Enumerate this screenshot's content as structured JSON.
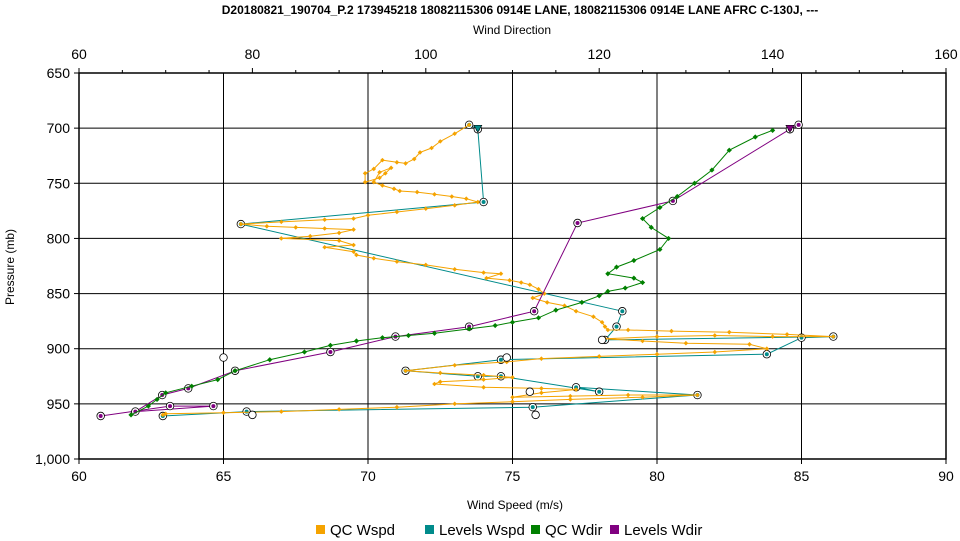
{
  "chart_data": {
    "type": "line",
    "title": "D20180821_190704_P.2 173945218 18082115306 0914E LANE, 18082115306 0914E LANE AFRC C-130J, ---",
    "xlabel": "Wind Speed (m/s)",
    "ylabel": "Pressure (mb)",
    "x2label": "Wind Direction",
    "xlim": [
      60,
      90
    ],
    "x2lim": [
      60,
      160
    ],
    "ylim": [
      650,
      1000
    ],
    "y_inverted": true,
    "grid": true,
    "legend_position": "bottom",
    "xticks": [
      "60",
      "65",
      "70",
      "75",
      "80",
      "85",
      "90"
    ],
    "x2ticks": [
      "60",
      "80",
      "100",
      "120",
      "140",
      "160"
    ],
    "yticks": [
      "650",
      "700",
      "750",
      "800",
      "850",
      "900",
      "950",
      "1,000"
    ],
    "colors": {
      "qc_wspd": "#F5A300",
      "levels_wspd": "#008B8B",
      "qc_wdir": "#008000",
      "levels_wdir": "#800080"
    },
    "series": [
      {
        "name": "QC Wspd",
        "axis": "bottom",
        "x": [
          73.5,
          73.0,
          72.5,
          72.2,
          71.8,
          71.6,
          71.3,
          71.0,
          70.5,
          70.2,
          69.9,
          69.9,
          70.4,
          70.6,
          70.8,
          70.4,
          70.2,
          70.5,
          70.9,
          71.1,
          71.7,
          72.3,
          72.9,
          73.4,
          73.8,
          73.0,
          72.0,
          71.0,
          70.0,
          69.5,
          68.5,
          67.0,
          65.6,
          66.5,
          67.5,
          68.5,
          69.5,
          69.0,
          68.0,
          67.0,
          69.0,
          69.5,
          68.5,
          69.5,
          69.6,
          70.2,
          71.0,
          72.0,
          73.0,
          74.0,
          74.6,
          74.1,
          74.9,
          75.3,
          75.6,
          75.9,
          76.1,
          75.7,
          76.2,
          76.8,
          77.2,
          77.8,
          78.1,
          78.2,
          78.3,
          79.0,
          80.5,
          82.5,
          84.5,
          86.1,
          84.0,
          82.0,
          80.0,
          78.2,
          79.5,
          81.0,
          83.2,
          83.8,
          82.0,
          80.0,
          78.0,
          76.0,
          74.8,
          73.0,
          71.3,
          72.5,
          74.0,
          75.0,
          74.0,
          72.5,
          72.3,
          74.0,
          76.0,
          77.2,
          76.0,
          75.0,
          77.0,
          79.0,
          81.4,
          79.5,
          77.0,
          75.0,
          73.0,
          71.0,
          69.0,
          67.0,
          65.0,
          63.0,
          62.9
        ],
        "y": [
          697,
          705,
          712,
          718,
          722,
          728,
          732,
          731,
          729,
          737,
          741,
          749,
          745,
          741,
          736,
          740,
          749,
          752,
          755,
          757,
          758,
          760,
          762,
          764,
          767,
          770,
          773,
          776,
          779,
          782,
          783,
          785,
          787,
          789,
          790,
          791,
          792,
          795,
          798,
          800,
          802,
          806,
          808,
          812,
          815,
          818,
          821,
          824,
          828,
          831,
          832,
          836,
          838,
          840,
          842,
          846,
          850,
          854,
          858,
          861,
          866,
          871,
          876,
          880,
          883,
          883,
          884,
          885,
          887,
          889,
          889,
          888,
          889,
          891,
          893,
          895,
          896,
          900,
          903,
          905,
          907,
          909,
          912,
          915,
          920,
          922,
          924,
          926,
          928,
          930,
          932,
          935,
          936,
          937,
          940,
          944,
          943,
          942,
          942,
          944,
          946,
          948,
          950,
          953,
          955,
          957,
          958,
          959,
          960
        ]
      },
      {
        "name": "Levels Wspd",
        "axis": "bottom",
        "x": [
          73.5,
          73.8,
          74.0,
          65.6,
          78.8,
          78.6,
          78.2,
          86.1,
          85.0,
          83.8,
          74.6,
          71.3,
          73.8,
          74.6,
          78.0,
          77.2,
          81.4,
          75.7,
          65.8,
          62.9
        ],
        "y": [
          697,
          701,
          767,
          787,
          866,
          880,
          892,
          889,
          890,
          905,
          910,
          920,
          925,
          925,
          939,
          935,
          942,
          953,
          957,
          961
        ]
      },
      {
        "name": "QC Wdir",
        "axis": "top",
        "x": [
          140,
          138,
          135,
          133,
          131,
          129,
          127,
          125,
          126,
          128,
          127,
          124,
          122,
          121,
          124,
          125,
          123,
          121,
          120,
          118,
          115,
          113,
          110,
          108,
          105,
          101,
          98,
          95,
          92,
          89,
          86,
          82,
          78,
          76,
          73,
          70,
          69,
          68,
          66
        ],
        "y": [
          702,
          708,
          720,
          738,
          750,
          762,
          772,
          782,
          790,
          800,
          810,
          820,
          826,
          832,
          836,
          840,
          845,
          848,
          852,
          858,
          865,
          872,
          876,
          879,
          882,
          886,
          888,
          890,
          893,
          897,
          903,
          910,
          920,
          928,
          934,
          940,
          946,
          952,
          960
        ]
      },
      {
        "name": "Levels Wdir",
        "axis": "top",
        "x": [
          143,
          142,
          128.5,
          117.5,
          112.5,
          105,
          96.5,
          89,
          78,
          72.6,
          69.6,
          66.5,
          75.5,
          70.5,
          62.5
        ],
        "y": [
          697,
          701,
          766,
          786,
          866,
          880,
          889,
          903,
          920,
          936,
          942,
          957,
          952,
          952,
          961
        ]
      }
    ],
    "open_circle_markers": [
      {
        "x": 65.0,
        "y": 908
      },
      {
        "x": 66.0,
        "y": 960
      },
      {
        "x": 75.8,
        "y": 960
      },
      {
        "x": 78.1,
        "y": 892
      },
      {
        "x": 74.8,
        "y": 908
      },
      {
        "x": 75.6,
        "y": 939
      }
    ]
  },
  "legend": {
    "items": [
      {
        "label": "QC Wspd",
        "color": "#F5A300"
      },
      {
        "label": "Levels Wspd",
        "color": "#008B8B"
      },
      {
        "label": "QC Wdir",
        "color": "#008000"
      },
      {
        "label": "Levels Wdir",
        "color": "#800080"
      }
    ]
  }
}
